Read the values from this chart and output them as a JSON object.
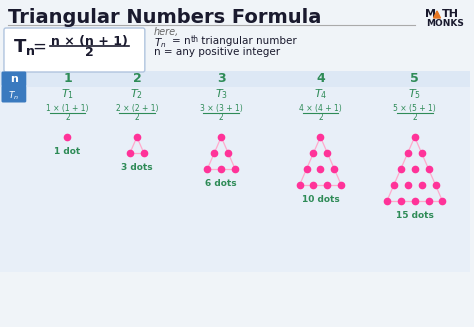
{
  "title": "Triangular Numbers Formula",
  "title_color": "#1a1a2e",
  "bg_color": "#f0f4f8",
  "formula_border": "#b0c4de",
  "green_color": "#2e8b57",
  "dot_color": "#ff3399",
  "line_color": "#ffaacc",
  "n_values": [
    "1",
    "2",
    "3",
    "4",
    "5"
  ],
  "t_labels": [
    "T",
    "T",
    "T",
    "T",
    "T"
  ],
  "t_subs": [
    "1",
    "2",
    "3",
    "4",
    "5"
  ],
  "formula_nums": [
    "1 × (1 + 1)",
    "2 × (2 + 1)",
    "3 × (3 + 1)",
    "4 × (4 + 1)",
    "5 × (5 + 1)"
  ],
  "formula_den": "2",
  "dot_labels": [
    "1 dot",
    "3 dots",
    "6 dots",
    "10 dots",
    "15 dots"
  ],
  "here_text": "here,",
  "desc1a": "T",
  "desc1b": "n",
  "desc1c": " = n",
  "desc1d": "th",
  "desc1e": " triangular number",
  "desc2": "n = any positive integer",
  "header_row_color": "#dde8f5",
  "tn_row_color": "#e8eff8",
  "math_monks_color": "#1a1a2e",
  "orange_color": "#e87722",
  "n_positions_x": [
    68,
    138,
    223,
    323,
    418
  ],
  "formula_box_bg": "#ffffff",
  "label_box_color": "#3a7abf"
}
